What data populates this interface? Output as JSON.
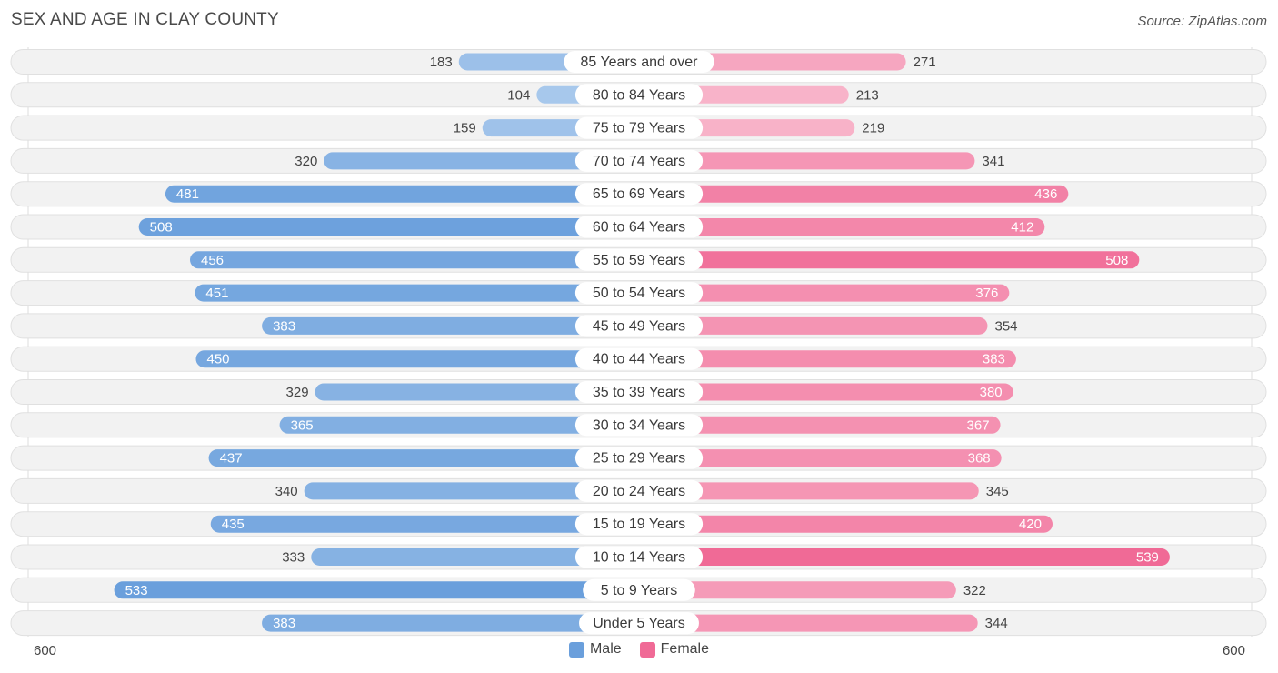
{
  "title": "SEX AND AGE IN CLAY COUNTY",
  "source": "Source: ZipAtlas.com",
  "colors": {
    "male_light": "#a8c8ec",
    "male_dark": "#6a9fdc",
    "female_light": "#f8b6cb",
    "female_dark": "#f06a96",
    "legend_male": "#6a9fdc",
    "legend_female": "#f06a96"
  },
  "legend": {
    "male": "Male",
    "female": "Female"
  },
  "axis": {
    "left_label": "600",
    "right_label": "600"
  },
  "chart_data": {
    "type": "bar",
    "orientation": "horizontal-diverging",
    "title": "SEX AND AGE IN CLAY COUNTY",
    "xlim": [
      0,
      600
    ],
    "categories": [
      "85 Years and over",
      "80 to 84 Years",
      "75 to 79 Years",
      "70 to 74 Years",
      "65 to 69 Years",
      "60 to 64 Years",
      "55 to 59 Years",
      "50 to 54 Years",
      "45 to 49 Years",
      "40 to 44 Years",
      "35 to 39 Years",
      "30 to 34 Years",
      "25 to 29 Years",
      "20 to 24 Years",
      "15 to 19 Years",
      "10 to 14 Years",
      "5 to 9 Years",
      "Under 5 Years"
    ],
    "series": [
      {
        "name": "Male",
        "values": [
          183,
          104,
          159,
          320,
          481,
          508,
          456,
          451,
          383,
          450,
          329,
          365,
          437,
          340,
          435,
          333,
          533,
          383
        ]
      },
      {
        "name": "Female",
        "values": [
          271,
          213,
          219,
          341,
          436,
          412,
          508,
          376,
          354,
          383,
          380,
          367,
          368,
          345,
          420,
          539,
          322,
          344
        ]
      }
    ]
  }
}
